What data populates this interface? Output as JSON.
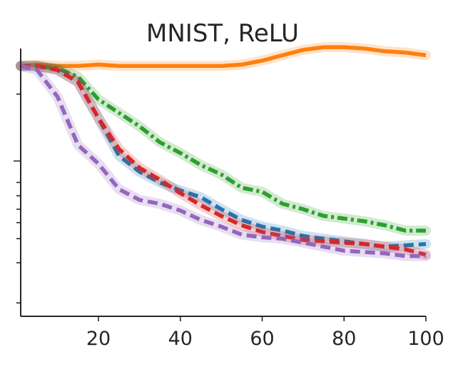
{
  "chart_data": {
    "type": "line",
    "title": "MNIST, ReLU",
    "xlabel": "",
    "ylabel": "",
    "xlim": [
      1,
      100
    ],
    "ylim": [
      0.0,
      1.0
    ],
    "y_scale": "log",
    "x_ticks": [
      20,
      40,
      60,
      80,
      100
    ],
    "x_tick_labels": [
      "20",
      "40",
      "60",
      "80",
      "100"
    ],
    "y_tick_labels": [],
    "grid": false,
    "legend": "none",
    "shaded_band": true,
    "series": [
      {
        "color": "#ff7f0e",
        "line_style": "solid",
        "x": [
          1,
          5,
          10,
          15,
          20,
          25,
          30,
          35,
          40,
          45,
          50,
          55,
          60,
          65,
          70,
          75,
          80,
          85,
          90,
          95,
          100
        ],
        "values": [
          0.935,
          0.94,
          0.935,
          0.935,
          0.94,
          0.935,
          0.935,
          0.935,
          0.935,
          0.935,
          0.935,
          0.94,
          0.955,
          0.975,
          0.995,
          1.005,
          1.005,
          1.0,
          0.99,
          0.985,
          0.975
        ]
      },
      {
        "color": "#2ca02c",
        "line_style": "dash-dot",
        "x": [
          1,
          5,
          10,
          15,
          20,
          25,
          30,
          35,
          40,
          45,
          50,
          55,
          60,
          65,
          70,
          75,
          80,
          85,
          90,
          95,
          100
        ],
        "values": [
          0.935,
          0.935,
          0.925,
          0.895,
          0.81,
          0.76,
          0.71,
          0.65,
          0.61,
          0.565,
          0.53,
          0.48,
          0.465,
          0.42,
          0.4,
          0.375,
          0.365,
          0.355,
          0.34,
          0.32,
          0.32
        ]
      },
      {
        "color": "#1f77b4",
        "line_style": "dashed",
        "x": [
          1,
          5,
          10,
          15,
          20,
          25,
          30,
          35,
          40,
          45,
          50,
          55,
          60,
          65,
          70,
          75,
          80,
          85,
          90,
          95,
          100
        ],
        "values": [
          0.935,
          0.935,
          0.92,
          0.875,
          0.74,
          0.6,
          0.54,
          0.5,
          0.47,
          0.445,
          0.4,
          0.36,
          0.335,
          0.32,
          0.3,
          0.29,
          0.28,
          0.27,
          0.26,
          0.265,
          0.27
        ]
      },
      {
        "color": "#d62728",
        "line_style": "dashed",
        "x": [
          1,
          5,
          10,
          15,
          20,
          25,
          30,
          35,
          40,
          45,
          50,
          55,
          60,
          65,
          70,
          75,
          80,
          85,
          90,
          95,
          100
        ],
        "values": [
          0.935,
          0.935,
          0.92,
          0.875,
          0.74,
          0.625,
          0.555,
          0.51,
          0.46,
          0.415,
          0.375,
          0.34,
          0.315,
          0.3,
          0.285,
          0.28,
          0.275,
          0.27,
          0.26,
          0.25,
          0.23
        ]
      },
      {
        "color": "#9467bd",
        "line_style": "dashed",
        "x": [
          1,
          5,
          10,
          15,
          20,
          25,
          30,
          35,
          40,
          45,
          50,
          55,
          60,
          65,
          70,
          75,
          80,
          85,
          90,
          95,
          100
        ],
        "values": [
          0.935,
          0.92,
          0.82,
          0.64,
          0.57,
          0.475,
          0.435,
          0.42,
          0.395,
          0.36,
          0.335,
          0.305,
          0.295,
          0.29,
          0.275,
          0.26,
          0.245,
          0.24,
          0.235,
          0.225,
          0.225
        ]
      }
    ]
  }
}
